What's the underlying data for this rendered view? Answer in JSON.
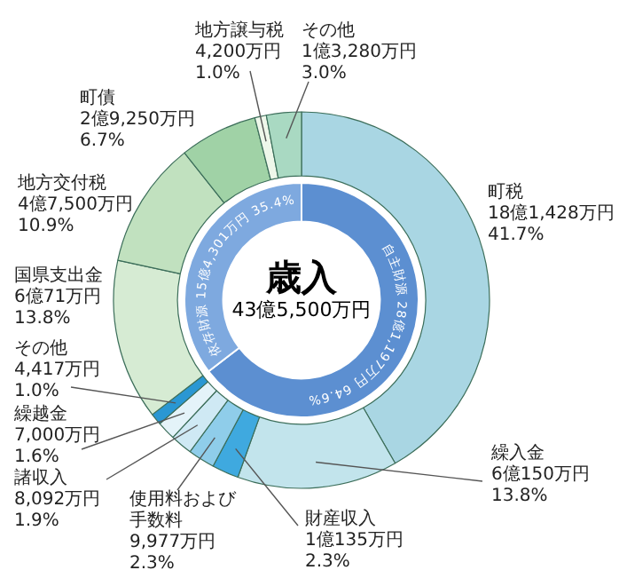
{
  "chart_data": [
    {
      "type": "donut",
      "title": "歳入",
      "subtitle": "43億5,500万円",
      "legend": false,
      "categories": [
        "町税",
        "繰入金",
        "財産収入",
        "使用料および手数料",
        "諸収入",
        "繰越金",
        "その他",
        "国県支出金",
        "地方交付税",
        "町債",
        "地方譲与税",
        "その他"
      ],
      "values": [
        41.7,
        13.8,
        2.3,
        2.3,
        1.9,
        1.6,
        1.0,
        13.8,
        10.9,
        6.7,
        1.0,
        3.0
      ],
      "value_labels": [
        "18億1,428万円\n41.7%",
        "6億150万円\n13.8%",
        "1億135万円\n2.3%",
        "9,977万円\n2.3%",
        "8,092万円\n1.9%",
        "7,000万円\n1.6%",
        "4,417万円\n1.0%",
        "6億71万円\n13.8%",
        "4億7,500万円\n10.9%",
        "2億9,250万円\n6.7%",
        "4,200万円\n1.0%",
        "1億3,280万円\n3.0%"
      ],
      "colors": [
        "#a9d6e3",
        "#c2e4ec",
        "#3fa9df",
        "#8fcdea",
        "#cfe9f4",
        "#e4f3f9",
        "#2a97d3",
        "#d6ebd3",
        "#c1e1bf",
        "#a0d2a6",
        "#eef7ea",
        "#a9d9c2"
      ]
    },
    {
      "type": "donut",
      "legend": false,
      "categories": [
        "自主財源",
        "依存財源"
      ],
      "values": [
        64.6,
        35.4
      ],
      "value_labels": [
        "28億1,197万円 64.6%",
        "15億4,301万円 35.4%"
      ],
      "colors": [
        "#5c8fd1",
        "#7ea9df"
      ]
    }
  ]
}
